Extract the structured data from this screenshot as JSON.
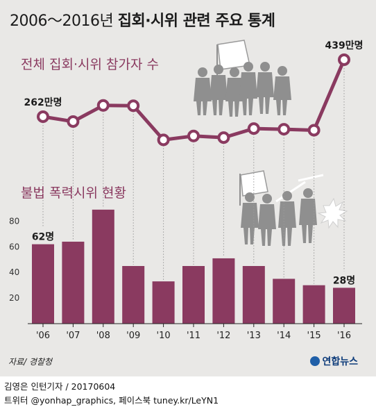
{
  "title": {
    "period": "2006～2016년",
    "subject": "집회·시위 관련 주요 통계"
  },
  "colors": {
    "accent": "#8a3a60",
    "panel_background": "#e9e8e6",
    "silhouette": "#8f8f8f"
  },
  "chart_data": [
    {
      "type": "line",
      "title": "전체 집회·시위 참가자 수",
      "x": [
        "'06",
        "'07",
        "'08",
        "'09",
        "'10",
        "'11",
        "'12",
        "'13",
        "'14",
        "'15",
        "'16"
      ],
      "values": [
        262,
        247,
        297,
        296,
        190,
        202,
        197,
        225,
        223,
        220,
        439
      ],
      "unit": "만명",
      "annotations": [
        {
          "index": 0,
          "text": "262만명"
        },
        {
          "index": 10,
          "text": "439만명"
        }
      ],
      "ylim": [
        150,
        450
      ],
      "grid": false
    },
    {
      "type": "bar",
      "title": "불법 폭력시위 현황",
      "categories": [
        "'06",
        "'07",
        "'08",
        "'09",
        "'10",
        "'11",
        "'12",
        "'13",
        "'14",
        "'15",
        "'16"
      ],
      "values": [
        62,
        64,
        89,
        45,
        33,
        45,
        51,
        45,
        35,
        30,
        28
      ],
      "unit": "명",
      "annotations": [
        {
          "index": 0,
          "text": "62명"
        },
        {
          "index": 10,
          "text": "28명"
        }
      ],
      "yticks": [
        20,
        40,
        60,
        80
      ],
      "ylim": [
        0,
        90
      ],
      "grid": false
    }
  ],
  "footer": {
    "source": "자료/ 경찰청",
    "brand": "연합뉴스",
    "credit_line1": "김영은 인턴기자 / 20170604",
    "credit_line2": "트위터 @yonhap_graphics, 페이스북 tuney.kr/LeYN1"
  },
  "illustrations": [
    "protest-crowd-icon",
    "violent-protest-icon"
  ]
}
